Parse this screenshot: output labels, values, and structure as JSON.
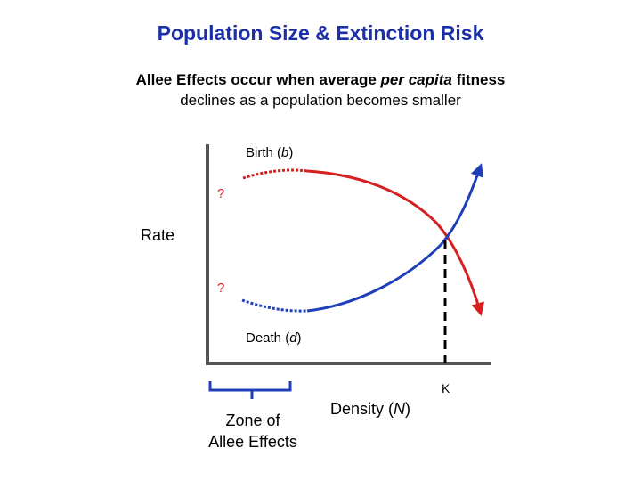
{
  "title": "Population Size & Extinction Risk",
  "subtitle": {
    "line1_pre": "Allee Effects occur when average ",
    "line1_em": "per capita",
    "line1_post": " fitness",
    "line2": "declines as a population becomes smaller"
  },
  "diagram": {
    "y_axis_label": "Rate",
    "x_axis_label_pre": "Density (",
    "x_axis_label_var": "N",
    "x_axis_label_post": ")",
    "birth_label_pre": "Birth (",
    "birth_label_var": "b",
    "birth_label_post": ")",
    "death_label_pre": "Death (",
    "death_label_var": "d",
    "death_label_post": ")",
    "birth_unknown": "?",
    "death_unknown": "?",
    "k_label": "K",
    "zone_label_line1": "Zone of",
    "zone_label_line2": "Allee Effects",
    "colors": {
      "title": "#1a2fa8",
      "birth_curve": "#d61f1f",
      "death_curve": "#1f3fb8",
      "axis": "#555555"
    }
  }
}
